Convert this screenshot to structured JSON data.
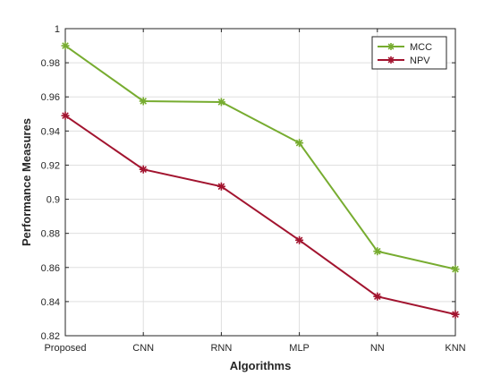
{
  "chart_data": {
    "type": "line",
    "categories": [
      "Proposed",
      "CNN",
      "RNN",
      "MLP",
      "NN",
      "KNN"
    ],
    "series": [
      {
        "name": "MCC",
        "color": "#77ac30",
        "marker": "asterisk",
        "values": [
          0.99,
          0.9575,
          0.957,
          0.933,
          0.8695,
          0.859
        ]
      },
      {
        "name": "NPV",
        "color": "#a2142f",
        "marker": "asterisk",
        "values": [
          0.949,
          0.9175,
          0.9075,
          0.876,
          0.843,
          0.8325
        ]
      }
    ],
    "xlabel": "Algorithms",
    "ylabel": "Performance Measures",
    "ylim": [
      0.82,
      1.0
    ],
    "yticks": [
      0.82,
      0.84,
      0.86,
      0.88,
      0.9,
      0.92,
      0.94,
      0.96,
      0.98,
      1
    ],
    "ytick_labels": [
      "0.82",
      "0.84",
      "0.86",
      "0.88",
      "0.9",
      "0.92",
      "0.94",
      "0.96",
      "0.98",
      "1"
    ],
    "grid": true,
    "legend_position": "top-right"
  }
}
